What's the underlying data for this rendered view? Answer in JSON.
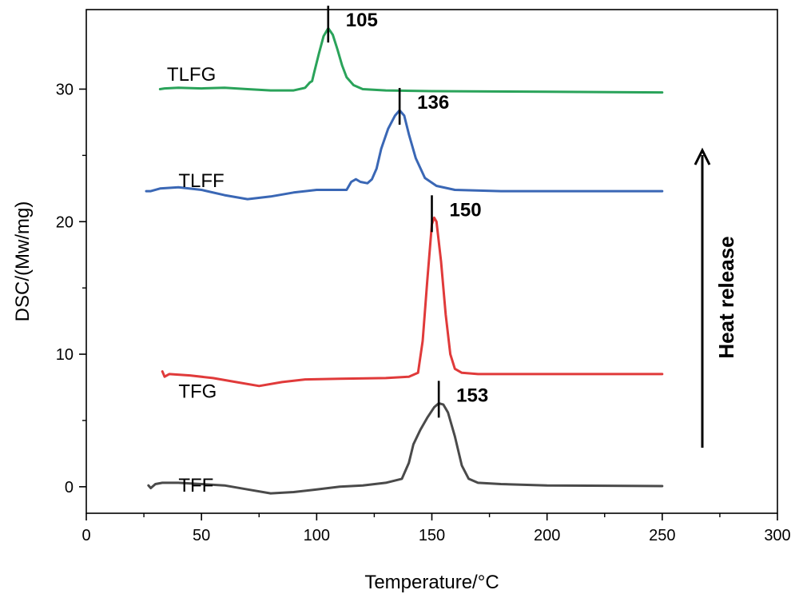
{
  "chart_data": {
    "type": "line",
    "title": "",
    "xlabel": "Temperature/°C",
    "ylabel": "DSC/(Mw/mg)",
    "xlim": [
      0,
      300
    ],
    "ylim": [
      -2,
      36
    ],
    "xticks": [
      0,
      50,
      100,
      150,
      200,
      250,
      300
    ],
    "yticks": [
      0,
      10,
      20,
      30
    ],
    "grid": false,
    "annotation": "Heat release",
    "series": [
      {
        "name": "TFF",
        "color": "#4a4a4a",
        "peak": 153,
        "peak_label": "153",
        "label_pos": [
          40,
          0.1
        ],
        "points": [
          [
            27,
            0.1
          ],
          [
            28,
            -0.1
          ],
          [
            30,
            0.2
          ],
          [
            33,
            0.3
          ],
          [
            40,
            0.3
          ],
          [
            50,
            0.2
          ],
          [
            60,
            0.1
          ],
          [
            70,
            -0.2
          ],
          [
            80,
            -0.5
          ],
          [
            90,
            -0.4
          ],
          [
            100,
            -0.2
          ],
          [
            110,
            0.0
          ],
          [
            120,
            0.1
          ],
          [
            130,
            0.3
          ],
          [
            137,
            0.6
          ],
          [
            140,
            1.8
          ],
          [
            142,
            3.2
          ],
          [
            145,
            4.3
          ],
          [
            148,
            5.2
          ],
          [
            151,
            6.0
          ],
          [
            153,
            6.3
          ],
          [
            155,
            6.2
          ],
          [
            157,
            5.6
          ],
          [
            160,
            3.8
          ],
          [
            163,
            1.6
          ],
          [
            166,
            0.6
          ],
          [
            170,
            0.3
          ],
          [
            180,
            0.2
          ],
          [
            200,
            0.1
          ],
          [
            250,
            0.05
          ]
        ]
      },
      {
        "name": "TFG",
        "color": "#e03a3a",
        "peak": 150,
        "peak_label": "150",
        "label_pos": [
          40,
          7.2
        ],
        "points": [
          [
            33,
            8.7
          ],
          [
            34,
            8.3
          ],
          [
            36,
            8.5
          ],
          [
            45,
            8.4
          ],
          [
            55,
            8.2
          ],
          [
            65,
            7.9
          ],
          [
            75,
            7.6
          ],
          [
            85,
            7.9
          ],
          [
            95,
            8.1
          ],
          [
            110,
            8.15
          ],
          [
            130,
            8.2
          ],
          [
            140,
            8.3
          ],
          [
            144,
            8.6
          ],
          [
            146,
            11
          ],
          [
            148,
            15.5
          ],
          [
            150,
            19.8
          ],
          [
            151,
            20.3
          ],
          [
            152,
            20.0
          ],
          [
            154,
            17
          ],
          [
            156,
            13
          ],
          [
            158,
            10
          ],
          [
            160,
            8.9
          ],
          [
            163,
            8.6
          ],
          [
            170,
            8.5
          ],
          [
            200,
            8.5
          ],
          [
            250,
            8.5
          ]
        ]
      },
      {
        "name": "TLFF",
        "color": "#3a67b5",
        "peak": 136,
        "peak_label": "136",
        "label_pos": [
          40,
          23.1
        ],
        "points": [
          [
            26,
            22.3
          ],
          [
            28,
            22.3
          ],
          [
            32,
            22.5
          ],
          [
            40,
            22.6
          ],
          [
            50,
            22.4
          ],
          [
            60,
            22.0
          ],
          [
            70,
            21.7
          ],
          [
            80,
            21.9
          ],
          [
            90,
            22.2
          ],
          [
            100,
            22.4
          ],
          [
            110,
            22.4
          ],
          [
            113,
            22.4
          ],
          [
            115,
            23.0
          ],
          [
            117,
            23.2
          ],
          [
            119,
            23.0
          ],
          [
            122,
            22.9
          ],
          [
            124,
            23.2
          ],
          [
            126,
            24.0
          ],
          [
            128,
            25.5
          ],
          [
            131,
            27.0
          ],
          [
            134,
            28.0
          ],
          [
            136,
            28.4
          ],
          [
            138,
            28.0
          ],
          [
            140,
            26.6
          ],
          [
            143,
            24.8
          ],
          [
            147,
            23.3
          ],
          [
            152,
            22.7
          ],
          [
            160,
            22.4
          ],
          [
            180,
            22.3
          ],
          [
            250,
            22.3
          ]
        ]
      },
      {
        "name": "TLFG",
        "color": "#2aa35a",
        "peak": 105,
        "peak_label": "105",
        "label_pos": [
          35,
          31.1
        ],
        "points": [
          [
            32,
            30.0
          ],
          [
            34,
            30.05
          ],
          [
            40,
            30.1
          ],
          [
            50,
            30.05
          ],
          [
            60,
            30.1
          ],
          [
            70,
            30.0
          ],
          [
            80,
            29.9
          ],
          [
            90,
            29.9
          ],
          [
            95,
            30.1
          ],
          [
            97,
            30.5
          ],
          [
            98,
            30.6
          ],
          [
            99,
            31.3
          ],
          [
            101,
            32.7
          ],
          [
            103,
            34.0
          ],
          [
            105,
            34.6
          ],
          [
            107,
            34.1
          ],
          [
            109,
            33.0
          ],
          [
            111,
            31.8
          ],
          [
            113,
            30.9
          ],
          [
            116,
            30.3
          ],
          [
            120,
            30.0
          ],
          [
            130,
            29.9
          ],
          [
            150,
            29.85
          ],
          [
            200,
            29.8
          ],
          [
            250,
            29.75
          ]
        ]
      }
    ]
  }
}
